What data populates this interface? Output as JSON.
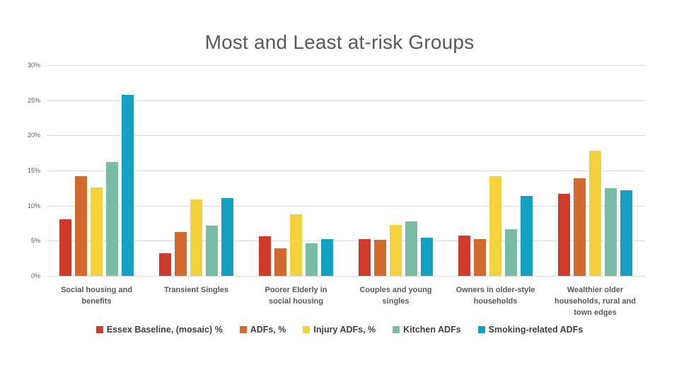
{
  "slide": {
    "title": "Most and Least at-risk Groups"
  },
  "chart_data": {
    "type": "bar",
    "title": "Most and Least at-risk Groups",
    "xlabel": "",
    "ylabel": "",
    "ylim": [
      0,
      30
    ],
    "grid": true,
    "legend_position": "bottom",
    "y_ticks": [
      "30%",
      "25%",
      "20%",
      "15%",
      "10%",
      "5%",
      "0%"
    ],
    "categories": [
      "Social housing and benefits",
      "Transient Singles",
      "Poorer Elderly in social housing",
      "Couples and young singles",
      "Owners in older-style households",
      "Wealthier older households, rural and town edges"
    ],
    "series": [
      {
        "name": "Essex Baseline, (mosaic) %",
        "color": "#cf3b2b",
        "values": [
          8.1,
          3.2,
          5.6,
          5.2,
          5.7,
          11.7
        ]
      },
      {
        "name": "ADFs, %",
        "color": "#d2692d",
        "values": [
          14.2,
          6.2,
          3.9,
          5.1,
          5.2,
          13.9
        ]
      },
      {
        "name": "Injury ADFs, %",
        "color": "#f4d13d",
        "values": [
          12.6,
          10.9,
          8.8,
          7.2,
          14.2,
          17.8
        ]
      },
      {
        "name": "Kitchen ADFs",
        "color": "#79bca6",
        "values": [
          16.2,
          7.1,
          4.6,
          7.8,
          6.6,
          12.5
        ]
      },
      {
        "name": "Smoking-related ADFs",
        "color": "#14a1c3",
        "values": [
          25.8,
          11.1,
          5.2,
          5.4,
          11.4,
          12.2
        ]
      }
    ]
  }
}
